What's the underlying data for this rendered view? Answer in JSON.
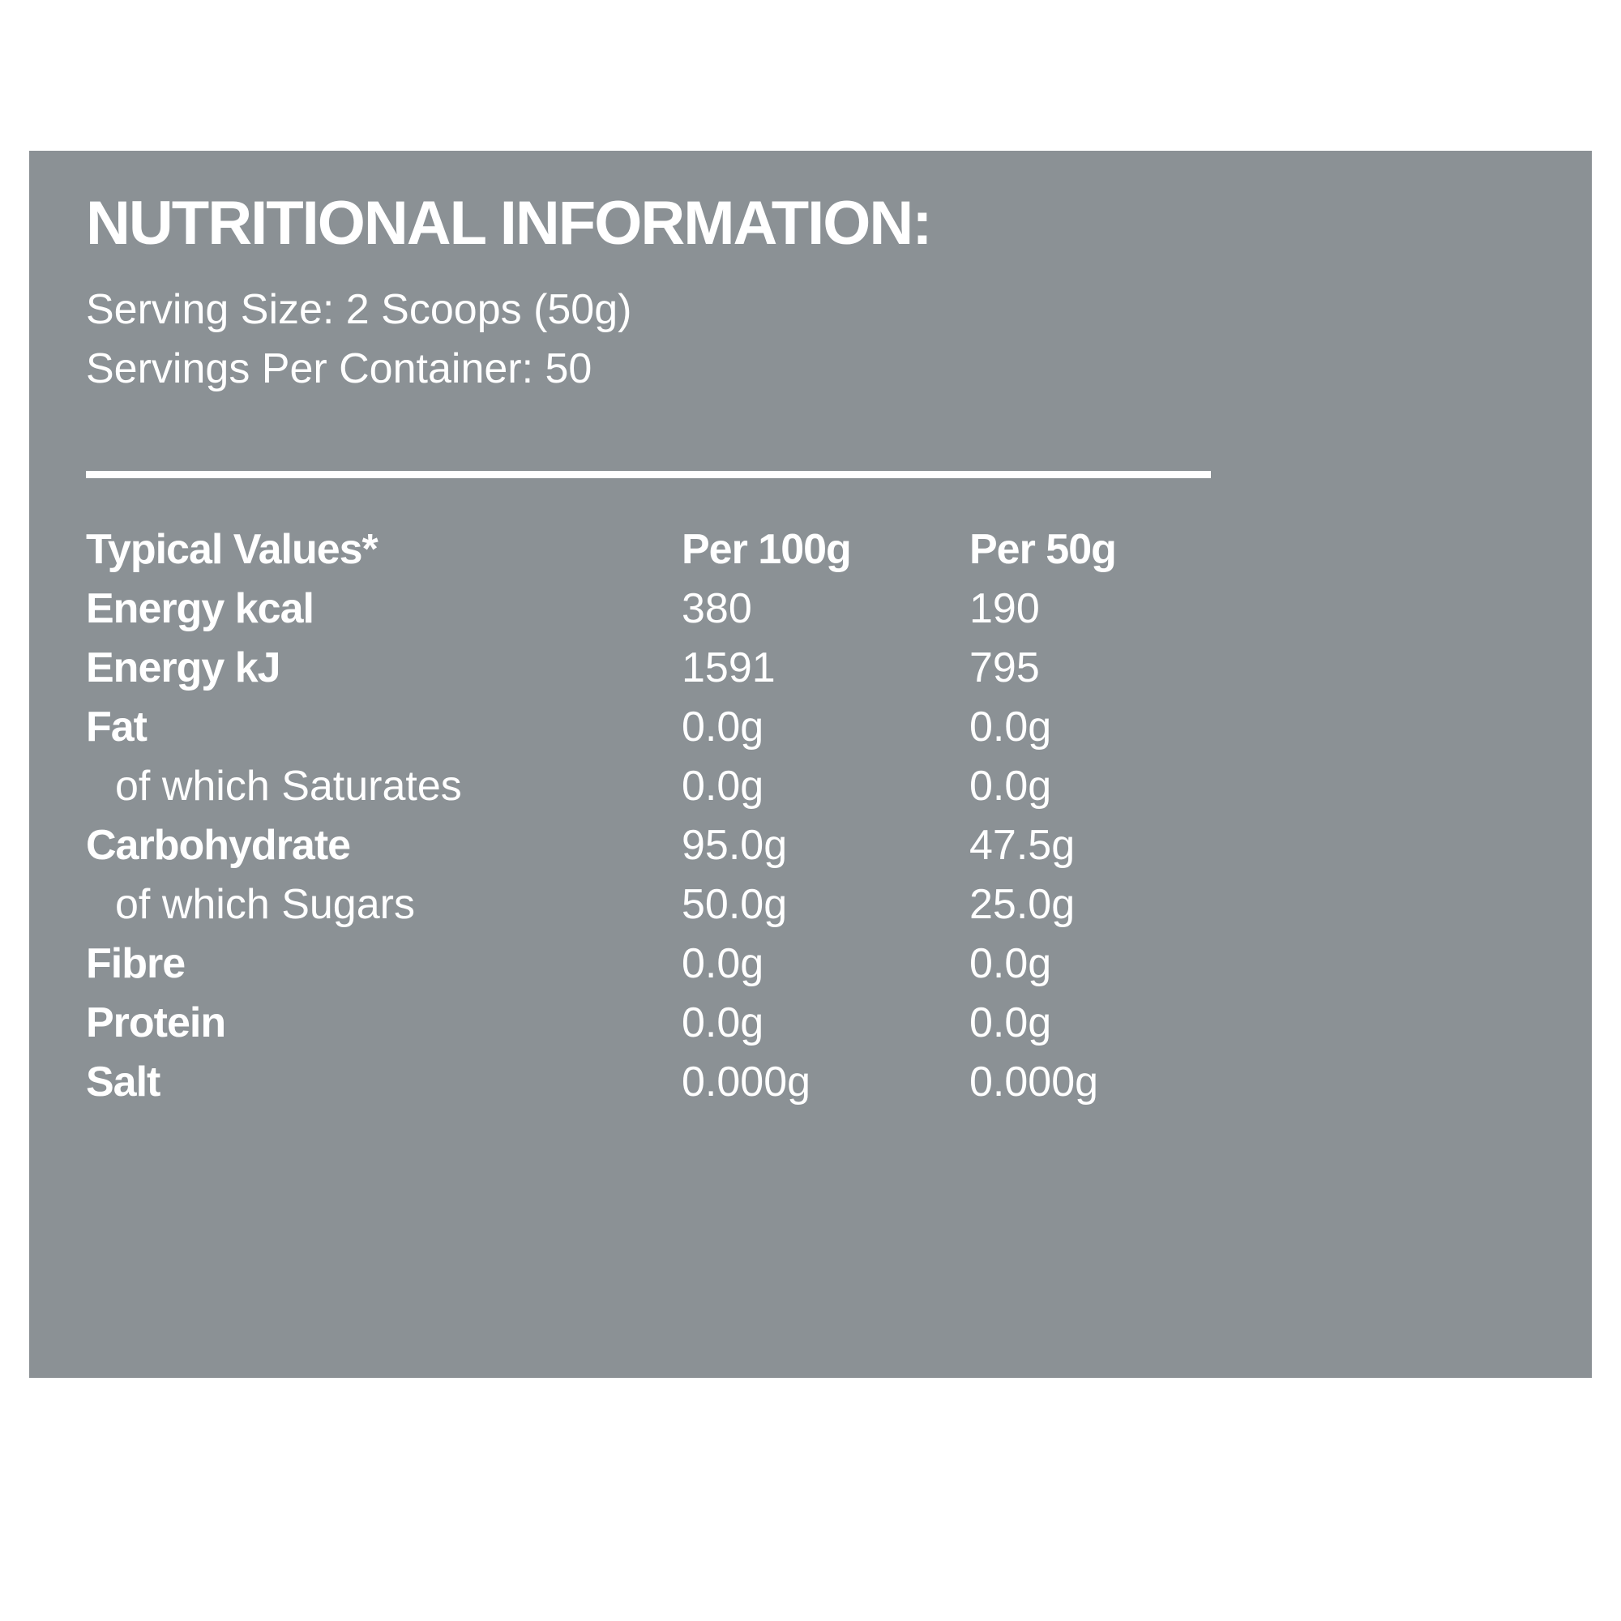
{
  "panel": {
    "bg_color": "#8b9195",
    "text_color": "#ffffff",
    "title": "NUTRITIONAL INFORMATION:",
    "serving_size": "Serving Size: 2 Scoops (50g)",
    "servings_per_container": "Servings Per Container: 50"
  },
  "table": {
    "headers": [
      "Typical Values*",
      "Per 100g",
      "Per 50g"
    ],
    "rows": [
      {
        "label": "Energy kcal",
        "per_100g": "380",
        "per_50g": "190"
      },
      {
        "label": "Energy kJ",
        "per_100g": "1591",
        "per_50g": "795"
      },
      {
        "label": "Fat",
        "per_100g": "0.0g",
        "per_50g": "0.0g"
      },
      {
        "label": "of which Saturates",
        "per_100g": "0.0g",
        "per_50g": "0.0g"
      },
      {
        "label": "Carbohydrate",
        "per_100g": "95.0g",
        "per_50g": "47.5g"
      },
      {
        "label": "of which Sugars",
        "per_100g": "50.0g",
        "per_50g": "25.0g"
      },
      {
        "label": "Fibre",
        "per_100g": "0.0g",
        "per_50g": "0.0g"
      },
      {
        "label": "Protein",
        "per_100g": "0.0g",
        "per_50g": "0.0g"
      },
      {
        "label": "Salt",
        "per_100g": "0.000g",
        "per_50g": "0.000g"
      }
    ]
  }
}
